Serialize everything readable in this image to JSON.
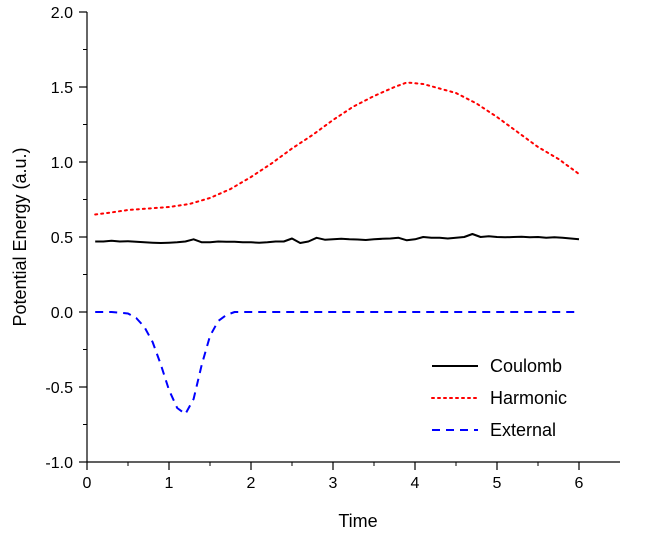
{
  "chart_data": {
    "type": "line",
    "xlabel": "Time",
    "ylabel": "Potential Energy (a.u.)",
    "xlim": [
      0,
      6.5
    ],
    "ylim": [
      -1.0,
      2.0
    ],
    "x_ticks": [
      "0",
      "1",
      "2",
      "3",
      "4",
      "5",
      "6"
    ],
    "y_ticks": [
      "-1.0",
      "-0.5",
      "0.0",
      "0.5",
      "1.0",
      "1.5",
      "2.0"
    ],
    "legend_position": "bottom-right",
    "grid": false,
    "series": [
      {
        "name": "Coulomb",
        "color": "#000000",
        "style": "solid",
        "x": [
          0.1,
          0.2,
          0.3,
          0.4,
          0.5,
          0.6,
          0.7,
          0.8,
          0.9,
          1.0,
          1.1,
          1.2,
          1.3,
          1.4,
          1.5,
          1.6,
          1.7,
          1.8,
          1.9,
          2.0,
          2.1,
          2.2,
          2.3,
          2.4,
          2.5,
          2.6,
          2.7,
          2.8,
          2.9,
          3.0,
          3.1,
          3.2,
          3.3,
          3.4,
          3.5,
          3.6,
          3.7,
          3.8,
          3.9,
          4.0,
          4.1,
          4.2,
          4.3,
          4.4,
          4.5,
          4.6,
          4.7,
          4.8,
          4.9,
          5.0,
          5.1,
          5.2,
          5.3,
          5.4,
          5.5,
          5.6,
          5.7,
          5.8,
          5.9,
          6.0
        ],
        "y": [
          0.47,
          0.47,
          0.475,
          0.47,
          0.472,
          0.468,
          0.465,
          0.462,
          0.46,
          0.462,
          0.465,
          0.47,
          0.485,
          0.465,
          0.465,
          0.47,
          0.468,
          0.468,
          0.465,
          0.465,
          0.462,
          0.465,
          0.47,
          0.47,
          0.49,
          0.46,
          0.47,
          0.495,
          0.482,
          0.485,
          0.488,
          0.485,
          0.483,
          0.48,
          0.485,
          0.488,
          0.49,
          0.495,
          0.478,
          0.485,
          0.5,
          0.495,
          0.495,
          0.49,
          0.495,
          0.5,
          0.52,
          0.5,
          0.505,
          0.5,
          0.498,
          0.5,
          0.502,
          0.498,
          0.5,
          0.495,
          0.498,
          0.495,
          0.49,
          0.485
        ]
      },
      {
        "name": "Harmonic",
        "color": "#ff0000",
        "style": "dotted",
        "x": [
          0.1,
          0.25,
          0.5,
          0.75,
          1.0,
          1.25,
          1.5,
          1.75,
          2.0,
          2.25,
          2.5,
          2.75,
          3.0,
          3.25,
          3.5,
          3.75,
          3.9,
          4.1,
          4.3,
          4.5,
          4.75,
          5.0,
          5.25,
          5.5,
          5.75,
          6.0
        ],
        "y": [
          0.65,
          0.66,
          0.68,
          0.69,
          0.7,
          0.72,
          0.76,
          0.82,
          0.9,
          0.99,
          1.09,
          1.18,
          1.28,
          1.37,
          1.44,
          1.5,
          1.53,
          1.52,
          1.49,
          1.46,
          1.39,
          1.3,
          1.2,
          1.1,
          1.02,
          0.92
        ]
      },
      {
        "name": "External",
        "color": "#0000ff",
        "style": "dashed",
        "x": [
          0.1,
          0.3,
          0.5,
          0.6,
          0.7,
          0.8,
          0.9,
          1.0,
          1.1,
          1.2,
          1.3,
          1.4,
          1.5,
          1.6,
          1.7,
          1.8,
          2.0,
          2.5,
          3.0,
          3.5,
          4.0,
          4.5,
          5.0,
          5.5,
          6.0
        ],
        "y": [
          0.0,
          0.0,
          -0.01,
          -0.04,
          -0.1,
          -0.2,
          -0.35,
          -0.52,
          -0.64,
          -0.68,
          -0.58,
          -0.35,
          -0.16,
          -0.06,
          -0.02,
          0.0,
          0.0,
          0.0,
          0.0,
          0.0,
          0.0,
          0.0,
          0.0,
          0.0,
          0.0
        ]
      }
    ]
  }
}
